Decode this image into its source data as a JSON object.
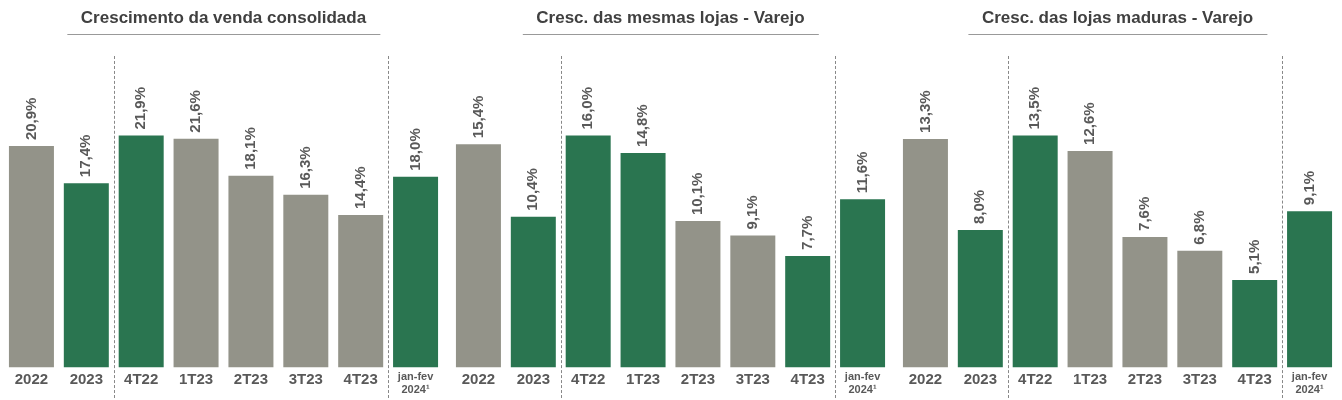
{
  "chart_data": [
    {
      "type": "bar",
      "title": "Crescimento da venda consolidada",
      "categories": [
        "2022",
        "2023",
        "4T22",
        "1T23",
        "2T23",
        "3T23",
        "4T23",
        "jan-fev 2024¹"
      ],
      "values": [
        20.9,
        17.4,
        21.9,
        21.6,
        18.1,
        16.3,
        14.4,
        18.0
      ],
      "colors": [
        "#939389",
        "#2a7550",
        "#2a7550",
        "#939389",
        "#939389",
        "#939389",
        "#939389",
        "#2a7550"
      ],
      "value_labels": [
        "20,9%",
        "17,4%",
        "21,9%",
        "21,6%",
        "18,1%",
        "16,3%",
        "14,4%",
        "18,0%"
      ],
      "grid": false,
      "legend": false,
      "tick_labels": "x"
    },
    {
      "type": "bar",
      "title": "Cresc. das mesmas lojas - Varejo",
      "categories": [
        "2022",
        "2023",
        "4T22",
        "1T23",
        "2T23",
        "3T23",
        "4T23",
        "jan-fev 2024¹"
      ],
      "values": [
        15.4,
        10.4,
        16.0,
        14.8,
        10.1,
        9.1,
        7.7,
        11.6
      ],
      "colors": [
        "#939389",
        "#2a7550",
        "#2a7550",
        "#2a7550",
        "#939389",
        "#939389",
        "#2a7550",
        "#2a7550"
      ],
      "value_labels": [
        "15,4%",
        "10,4%",
        "16,0%",
        "14,8%",
        "10,1%",
        "9,1%",
        "7,7%",
        "11,6%"
      ],
      "grid": false,
      "legend": false,
      "tick_labels": "x"
    },
    {
      "type": "bar",
      "title": "Cresc. das lojas maduras - Varejo",
      "categories": [
        "2022",
        "2023",
        "4T22",
        "1T23",
        "2T23",
        "3T23",
        "4T23",
        "jan-fev 2024¹"
      ],
      "values": [
        13.3,
        8.0,
        13.5,
        12.6,
        7.6,
        6.8,
        5.1,
        9.1
      ],
      "colors": [
        "#939389",
        "#2a7550",
        "#2a7550",
        "#939389",
        "#939389",
        "#939389",
        "#2a7550",
        "#2a7550"
      ],
      "value_labels": [
        "13,3%",
        "8,0%",
        "13,5%",
        "12,6%",
        "7,6%",
        "6,8%",
        "5,1%",
        "9,1%"
      ],
      "grid": false,
      "legend": false,
      "tick_labels": "x"
    }
  ]
}
